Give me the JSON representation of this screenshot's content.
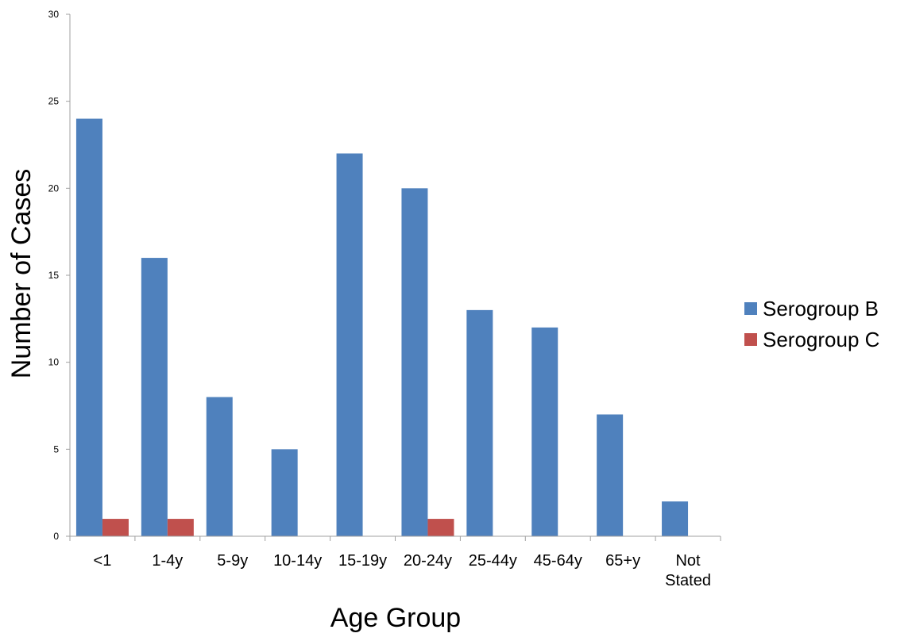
{
  "chart_data": {
    "type": "bar",
    "title": "",
    "xlabel": "Age Group",
    "ylabel": "Number of Cases",
    "categories": [
      "<1",
      "1-4y",
      "5-9y",
      "10-14y",
      "15-19y",
      "20-24y",
      "25-44y",
      "45-64y",
      "65+y",
      "Not Stated"
    ],
    "series": [
      {
        "name": "Serogroup B",
        "color": "#4f81bd",
        "values": [
          24,
          16,
          8,
          5,
          22,
          20,
          13,
          12,
          7,
          2
        ]
      },
      {
        "name": "Serogroup C",
        "color": "#c0504d",
        "values": [
          1,
          1,
          0,
          0,
          0,
          1,
          0,
          0,
          0,
          0
        ]
      }
    ],
    "ylim": [
      0,
      30
    ],
    "yticks": [
      0,
      5,
      10,
      15,
      20,
      25,
      30
    ],
    "grid": false,
    "legend_position": "right"
  }
}
